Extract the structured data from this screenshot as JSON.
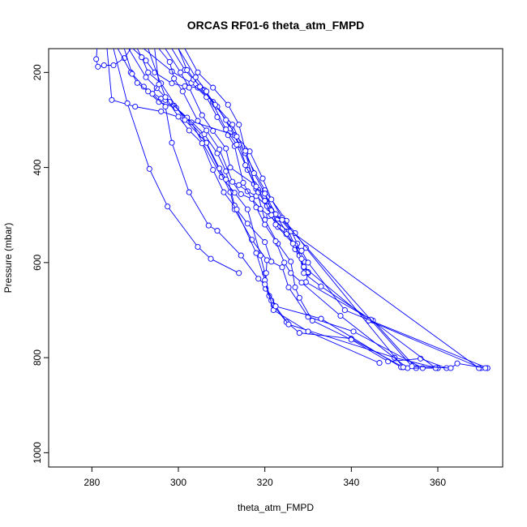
{
  "chart_data": {
    "type": "line",
    "title": "ORCAS RF01-6 theta_atm_FMPD",
    "xlabel": "theta_atm_FMPD",
    "ylabel": "Pressure (mbar)",
    "xlim": [
      270,
      375
    ],
    "ylim": [
      1030,
      150
    ],
    "y_reversed": true,
    "x_ticks": [
      280,
      300,
      320,
      340,
      360
    ],
    "y_ticks": [
      200,
      400,
      600,
      800,
      1000
    ],
    "grid": false,
    "legend": "none",
    "series_color": "#0000ff",
    "marker": "open-circle",
    "series": [
      {
        "points": [
          [
            281.2,
            150
          ],
          [
            281.0,
            172
          ],
          [
            281.4,
            188
          ],
          [
            282.8,
            185
          ],
          [
            285.0,
            185
          ],
          [
            287.5,
            170
          ],
          [
            289.0,
            150
          ]
        ]
      },
      {
        "points": [
          [
            283.5,
            150
          ],
          [
            284.6,
            258
          ],
          [
            290.0,
            272
          ],
          [
            296.0,
            282
          ],
          [
            313.0,
            332
          ],
          [
            320.0,
            448
          ],
          [
            325.0,
            512
          ],
          [
            327.5,
            560
          ],
          [
            329.0,
            598
          ],
          [
            330.0,
            622
          ]
        ]
      },
      {
        "points": [
          [
            285.0,
            150
          ],
          [
            288.2,
            265
          ],
          [
            293.3,
            403
          ],
          [
            297.5,
            482
          ],
          [
            304.5,
            567
          ],
          [
            307.5,
            592
          ],
          [
            314.0,
            622
          ]
        ]
      },
      {
        "points": [
          [
            286.0,
            150
          ],
          [
            289.0,
            200
          ],
          [
            292.0,
            230
          ],
          [
            296.0,
            255
          ],
          [
            297.0,
            258
          ],
          [
            299.0,
            270
          ],
          [
            303.0,
            305
          ],
          [
            310.0,
            420
          ],
          [
            313.0,
            453
          ],
          [
            316.0,
            488
          ],
          [
            319.0,
            585
          ],
          [
            320.0,
            623
          ],
          [
            321.0,
            670
          ],
          [
            322.0,
            690
          ],
          [
            325.0,
            725
          ],
          [
            328.0,
            748
          ],
          [
            340.0,
            760
          ],
          [
            352.0,
            820
          ]
        ]
      },
      {
        "points": [
          [
            287.5,
            150
          ],
          [
            289.3,
            203
          ],
          [
            290.5,
            222
          ],
          [
            293.0,
            240
          ],
          [
            295.5,
            262
          ],
          [
            299.5,
            275
          ],
          [
            305.5,
            332
          ],
          [
            312.0,
            452
          ],
          [
            313.0,
            488
          ],
          [
            317.0,
            552
          ],
          [
            320.5,
            595
          ],
          [
            320.3,
            622
          ],
          [
            320.2,
            655
          ],
          [
            321.5,
            680
          ],
          [
            325.5,
            730
          ],
          [
            350.0,
            800
          ],
          [
            360.0,
            822
          ]
        ]
      },
      {
        "points": [
          [
            288.5,
            150
          ],
          [
            292.5,
            210
          ],
          [
            295.0,
            233
          ],
          [
            298.0,
            262
          ],
          [
            302.0,
            295
          ],
          [
            306.0,
            330
          ],
          [
            309.0,
            370
          ],
          [
            311.0,
            408
          ],
          [
            313.0,
            480
          ],
          [
            318.0,
            580
          ],
          [
            320.0,
            637
          ],
          [
            322.0,
            700
          ],
          [
            330.0,
            745
          ],
          [
            346.5,
            811
          ]
        ]
      },
      {
        "points": [
          [
            289.5,
            150
          ],
          [
            292.5,
            175
          ],
          [
            294.5,
            200
          ],
          [
            298.5,
            223
          ],
          [
            301.5,
            229
          ],
          [
            304.5,
            232
          ],
          [
            308.0,
            262
          ],
          [
            312.5,
            310
          ],
          [
            315.5,
            370
          ],
          [
            318.0,
            445
          ],
          [
            320.0,
            510
          ],
          [
            323.0,
            560
          ],
          [
            326.0,
            598
          ],
          [
            327.0,
            652
          ],
          [
            328.0,
            674
          ],
          [
            331.0,
            722
          ],
          [
            340.0,
            762
          ],
          [
            348.5,
            808
          ],
          [
            356.0,
            802
          ],
          [
            362.0,
            822
          ]
        ]
      },
      {
        "points": [
          [
            290.5,
            150
          ],
          [
            291.5,
            168
          ],
          [
            293.0,
            200
          ],
          [
            296.0,
            223
          ],
          [
            301.5,
            300
          ],
          [
            306.5,
            348
          ],
          [
            309.5,
            402
          ],
          [
            311.0,
            425
          ],
          [
            314.0,
            437
          ],
          [
            316.0,
            450
          ],
          [
            318.0,
            460
          ],
          [
            321.0,
            486
          ],
          [
            323.0,
            508
          ],
          [
            325.0,
            535
          ],
          [
            327.0,
            572
          ],
          [
            329.0,
            610
          ],
          [
            330.0,
            620
          ],
          [
            329.5,
            641
          ],
          [
            345.0,
            722
          ],
          [
            355.0,
            822
          ]
        ]
      },
      {
        "points": [
          [
            292.0,
            150
          ],
          [
            298.5,
            198
          ],
          [
            303.0,
            222
          ],
          [
            306.5,
            252
          ],
          [
            309.0,
            294
          ],
          [
            311.5,
            332
          ],
          [
            313.0,
            355
          ],
          [
            315.0,
            432
          ],
          [
            318.0,
            484
          ],
          [
            320.0,
            520
          ],
          [
            322.5,
            555
          ],
          [
            324.5,
            600
          ],
          [
            326.0,
            622
          ],
          [
            328.5,
            642
          ],
          [
            337.5,
            712
          ],
          [
            353.0,
            822
          ],
          [
            360.0,
            822
          ]
        ]
      },
      {
        "points": [
          [
            293.0,
            150
          ],
          [
            297.0,
            252
          ],
          [
            300.0,
            293
          ],
          [
            302.5,
            322
          ],
          [
            305.5,
            349
          ],
          [
            308.0,
            405
          ],
          [
            310.5,
            452
          ],
          [
            313.5,
            488
          ],
          [
            316.0,
            518
          ],
          [
            320.0,
            557
          ],
          [
            321.5,
            598
          ],
          [
            324.0,
            610
          ],
          [
            325.5,
            652
          ],
          [
            330.0,
            714
          ],
          [
            340.5,
            745
          ],
          [
            356.5,
            822
          ]
        ]
      },
      {
        "points": [
          [
            294.5,
            150
          ],
          [
            295.5,
            225
          ],
          [
            294.0,
            245
          ],
          [
            297.0,
            272
          ],
          [
            298.5,
            348
          ],
          [
            302.5,
            452
          ],
          [
            307.0,
            522
          ],
          [
            309.0,
            533
          ],
          [
            314.5,
            585
          ],
          [
            318.5,
            634
          ],
          [
            320.0,
            646
          ],
          [
            322.5,
            692
          ],
          [
            333.0,
            718
          ],
          [
            351.5,
            820
          ]
        ]
      },
      {
        "points": [
          [
            295.5,
            150
          ],
          [
            298.0,
            178
          ],
          [
            299.0,
            213
          ],
          [
            301.0,
            240
          ],
          [
            304.5,
            302
          ],
          [
            306.5,
            322
          ],
          [
            309.5,
            362
          ],
          [
            312.5,
            430
          ],
          [
            314.5,
            456
          ],
          [
            317.0,
            466
          ],
          [
            319.0,
            487
          ],
          [
            321.0,
            502
          ],
          [
            325.5,
            535
          ],
          [
            328.0,
            585
          ],
          [
            329.0,
            622
          ],
          [
            333.0,
            650
          ],
          [
            344.5,
            720
          ],
          [
            359.5,
            822
          ]
        ]
      },
      {
        "points": [
          [
            297.0,
            150
          ],
          [
            300.5,
            200
          ],
          [
            302.5,
            232
          ],
          [
            305.5,
            290
          ],
          [
            308.0,
            323
          ],
          [
            311.0,
            360
          ],
          [
            312.0,
            400
          ],
          [
            317.5,
            435
          ],
          [
            318.5,
            447
          ],
          [
            320.0,
            455
          ],
          [
            321.5,
            490
          ],
          [
            323.0,
            525
          ],
          [
            325.0,
            540
          ],
          [
            327.0,
            563
          ],
          [
            328.5,
            592
          ],
          [
            329.0,
            609
          ],
          [
            344.0,
            722
          ],
          [
            370.0,
            822
          ]
        ]
      },
      {
        "points": [
          [
            298.5,
            150
          ],
          [
            301.5,
            195
          ],
          [
            303.5,
            215
          ],
          [
            306.0,
            237
          ],
          [
            309.0,
            272
          ],
          [
            312.0,
            318
          ],
          [
            314.0,
            352
          ],
          [
            316.0,
            405
          ],
          [
            318.5,
            452
          ],
          [
            320.5,
            481
          ],
          [
            322.5,
            520
          ],
          [
            326.5,
            560
          ],
          [
            328.5,
            575
          ],
          [
            330.0,
            600
          ],
          [
            338.5,
            700
          ],
          [
            371.5,
            822
          ]
        ]
      },
      {
        "points": [
          [
            300.0,
            150
          ],
          [
            302.0,
            195
          ],
          [
            305.0,
            230
          ],
          [
            308.5,
            268
          ],
          [
            311.0,
            300
          ],
          [
            313.5,
            335
          ],
          [
            316.5,
            366
          ],
          [
            319.5,
            423
          ],
          [
            321.5,
            467
          ],
          [
            324.0,
            506
          ],
          [
            327.0,
            538
          ],
          [
            329.5,
            569
          ],
          [
            352.0,
            820
          ]
        ]
      },
      {
        "points": [
          [
            301.5,
            150
          ],
          [
            304.5,
            200
          ],
          [
            308.0,
            232
          ],
          [
            311.5,
            268
          ],
          [
            314.0,
            310
          ],
          [
            315.5,
            365
          ],
          [
            317.5,
            412
          ],
          [
            320.0,
            455
          ],
          [
            322.5,
            498
          ],
          [
            326.0,
            534
          ],
          [
            369.5,
            822
          ]
        ]
      },
      {
        "points": [
          [
            300.0,
            150
          ],
          [
            304.0,
            210
          ],
          [
            306.5,
            240
          ],
          [
            311.0,
            320
          ],
          [
            313.5,
            352
          ],
          [
            315.5,
            395
          ],
          [
            318.0,
            440
          ],
          [
            320.0,
            470
          ],
          [
            321.5,
            500
          ],
          [
            324.0,
            510
          ],
          [
            354.0,
            818
          ],
          [
            363.0,
            822
          ],
          [
            364.5,
            812
          ],
          [
            371.0,
            822
          ]
        ]
      }
    ]
  }
}
